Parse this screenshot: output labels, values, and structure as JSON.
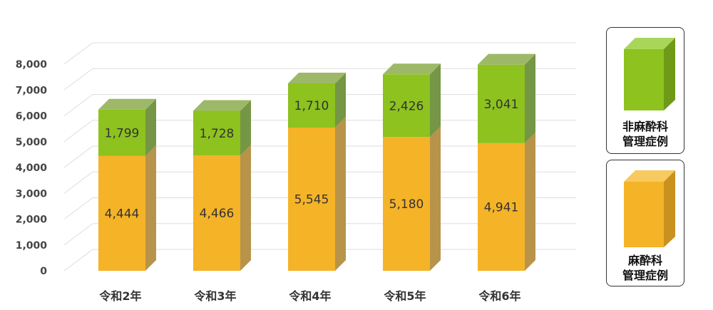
{
  "chart_data": {
    "type": "bar",
    "stacked": true,
    "categories": [
      "令和2年",
      "令和3年",
      "令和4年",
      "令和5年",
      "令和6年"
    ],
    "series": [
      {
        "name": "麻酔科管理症例",
        "values": [
          4444,
          4466,
          5545,
          5180,
          4941
        ],
        "labels": [
          "4,444",
          "4,466",
          "5,545",
          "5,180",
          "4,941"
        ],
        "color": "#F5B328"
      },
      {
        "name": "非麻酔科管理症例",
        "values": [
          1799,
          1728,
          1710,
          2426,
          3041
        ],
        "labels": [
          "1,799",
          "1,728",
          "1,710",
          "2,426",
          "3,041"
        ],
        "color": "#8DC21F"
      }
    ],
    "y_ticks": [
      0,
      1000,
      2000,
      3000,
      4000,
      5000,
      6000,
      7000,
      8000
    ],
    "y_tick_labels": [
      "0",
      "1,000",
      "2,000",
      "3,000",
      "4,000",
      "5,000",
      "6,000",
      "7,000",
      "8,000"
    ],
    "ylim": [
      0,
      8000
    ],
    "grid": true,
    "style": "3d",
    "legend_position": "right"
  },
  "legend": {
    "non_anesthesia": {
      "line1": "非麻酔科",
      "line2": "管理症例"
    },
    "anesthesia": {
      "line1": "麻酔科",
      "line2": "管理症例"
    }
  }
}
